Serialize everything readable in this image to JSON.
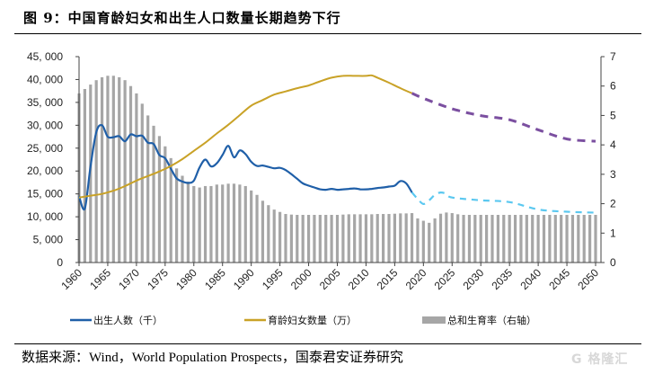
{
  "header": {
    "title": "图 9：中国育龄妇女和出生人口数量长期趋势下行"
  },
  "footer": {
    "source": "数据来源：Wind，World Population Prospects，国泰君安证券研究",
    "watermark": "G 格隆汇"
  },
  "colors": {
    "births": "#1f5fa8",
    "births_forecast": "#5bc8f0",
    "women": "#c9a227",
    "women_forecast": "#7b4fa0",
    "tfr": "#a6a6a6"
  },
  "chart_data": {
    "type": "bar+line",
    "title": "图 9：中国育龄妇女和出生人口数量长期趋势下行",
    "xlabel": "",
    "ylabel_left": "",
    "ylabel_right": "",
    "x_range": [
      1960,
      2050
    ],
    "x_ticks": [
      "1960",
      "1965",
      "1970",
      "1975",
      "1980",
      "1985",
      "1990",
      "1995",
      "2000",
      "2005",
      "2010",
      "2015",
      "2020",
      "2025",
      "2030",
      "2035",
      "2040",
      "2045",
      "2050"
    ],
    "y_left": {
      "range": [
        0,
        45000
      ],
      "ticks": [
        "0",
        "5, 000",
        "10, 000",
        "15, 000",
        "20, 000",
        "25, 000",
        "30, 000",
        "35, 000",
        "40, 000",
        "45, 000"
      ]
    },
    "y_right": {
      "range": [
        0,
        7
      ],
      "ticks": [
        "0",
        "1",
        "2",
        "3",
        "4",
        "5",
        "6",
        "7"
      ]
    },
    "grid": false,
    "legend": {
      "placement": "bottom",
      "entries": [
        {
          "label": "出生人数（千）",
          "style": "line",
          "color_key": "births"
        },
        {
          "label": "育龄妇女数量（万）",
          "style": "line",
          "color_key": "women"
        },
        {
          "label": "总和生育率（右轴）",
          "style": "bar",
          "color_key": "tfr"
        }
      ]
    },
    "series": [
      {
        "name": "总和生育率（右轴）",
        "type": "bar",
        "axis": "right",
        "x": [
          1960,
          1961,
          1962,
          1963,
          1964,
          1965,
          1966,
          1967,
          1968,
          1969,
          1970,
          1971,
          1972,
          1973,
          1974,
          1975,
          1976,
          1977,
          1978,
          1979,
          1980,
          1981,
          1982,
          1983,
          1984,
          1985,
          1986,
          1987,
          1988,
          1989,
          1990,
          1991,
          1992,
          1993,
          1994,
          1995,
          1996,
          1997,
          1998,
          1999,
          2000,
          2001,
          2002,
          2003,
          2004,
          2005,
          2006,
          2007,
          2008,
          2009,
          2010,
          2011,
          2012,
          2013,
          2014,
          2015,
          2016,
          2017,
          2018,
          2019,
          2020,
          2021,
          2022,
          2023,
          2024,
          2025,
          2026,
          2027,
          2028,
          2029,
          2030,
          2031,
          2032,
          2033,
          2034,
          2035,
          2036,
          2037,
          2038,
          2039,
          2040,
          2041,
          2042,
          2043,
          2044,
          2045,
          2046,
          2047,
          2048,
          2049,
          2050
        ],
        "values": [
          5.75,
          5.9,
          6.05,
          6.2,
          6.3,
          6.35,
          6.35,
          6.3,
          6.2,
          6.0,
          5.75,
          5.4,
          5.0,
          4.65,
          4.3,
          3.95,
          3.55,
          3.2,
          2.95,
          2.75,
          2.6,
          2.55,
          2.6,
          2.6,
          2.65,
          2.65,
          2.68,
          2.68,
          2.65,
          2.6,
          2.45,
          2.3,
          2.1,
          1.95,
          1.8,
          1.72,
          1.65,
          1.63,
          1.62,
          1.62,
          1.62,
          1.62,
          1.62,
          1.62,
          1.62,
          1.62,
          1.63,
          1.64,
          1.64,
          1.64,
          1.64,
          1.64,
          1.65,
          1.65,
          1.65,
          1.66,
          1.67,
          1.67,
          1.68,
          1.5,
          1.42,
          1.35,
          1.5,
          1.66,
          1.7,
          1.68,
          1.64,
          1.62,
          1.62,
          1.62,
          1.62,
          1.62,
          1.62,
          1.62,
          1.62,
          1.62,
          1.62,
          1.62,
          1.62,
          1.62,
          1.62,
          1.62,
          1.62,
          1.62,
          1.62,
          1.62,
          1.62,
          1.62,
          1.62,
          1.62,
          1.62
        ]
      },
      {
        "name": "出生人数（千）",
        "type": "line",
        "axis": "left",
        "x": [
          1960,
          1961,
          1962,
          1963,
          1964,
          1965,
          1966,
          1967,
          1968,
          1969,
          1970,
          1971,
          1972,
          1973,
          1974,
          1975,
          1976,
          1977,
          1978,
          1979,
          1980,
          1981,
          1982,
          1983,
          1984,
          1985,
          1986,
          1987,
          1988,
          1989,
          1990,
          1991,
          1992,
          1993,
          1994,
          1995,
          1996,
          1997,
          1998,
          1999,
          2000,
          2001,
          2002,
          2003,
          2004,
          2005,
          2006,
          2007,
          2008,
          2009,
          2010,
          2011,
          2012,
          2013,
          2014,
          2015,
          2016,
          2017,
          2018
        ],
        "values": [
          14500,
          11800,
          21000,
          28500,
          30000,
          27500,
          27400,
          27600,
          26500,
          28000,
          27600,
          27700,
          26200,
          25900,
          23500,
          22800,
          20500,
          18400,
          17700,
          17400,
          17900,
          20800,
          22500,
          21000,
          21700,
          23500,
          25500,
          23000,
          24500,
          23700,
          22000,
          21100,
          21200,
          20900,
          20600,
          20700,
          20200,
          19300,
          18300,
          17300,
          16800,
          16400,
          16000,
          15900,
          16100,
          15900,
          16000,
          16100,
          16200,
          16000,
          16000,
          16100,
          16300,
          16400,
          16600,
          16800,
          17800,
          17300,
          15300
        ]
      },
      {
        "name": "出生人数（千） 预测",
        "type": "line-dashed",
        "axis": "left",
        "x": [
          2018,
          2019,
          2020,
          2021,
          2022,
          2023,
          2024,
          2025,
          2030,
          2035,
          2040,
          2045,
          2050
        ],
        "values": [
          15300,
          13900,
          12800,
          13600,
          14800,
          15300,
          15000,
          14200,
          13600,
          13200,
          11600,
          11100,
          10900
        ]
      },
      {
        "name": "育龄妇女数量（万）",
        "type": "line",
        "axis": "left",
        "x": [
          1960,
          1962,
          1964,
          1966,
          1968,
          1970,
          1972,
          1974,
          1976,
          1978,
          1980,
          1982,
          1984,
          1986,
          1988,
          1990,
          1992,
          1994,
          1996,
          1998,
          2000,
          2002,
          2004,
          2006,
          2008,
          2010,
          2011,
          2012,
          2014,
          2016,
          2018
        ],
        "values": [
          14200,
          14600,
          15000,
          15700,
          16700,
          17900,
          18900,
          19900,
          21100,
          22600,
          24400,
          26200,
          28200,
          30100,
          32200,
          34300,
          35500,
          36700,
          37400,
          38100,
          38700,
          39600,
          40400,
          40800,
          40800,
          40800,
          40900,
          40400,
          39300,
          38100,
          37000
        ]
      },
      {
        "name": "育龄妇女数量（万） 预测",
        "type": "line-dashed",
        "axis": "left",
        "x": [
          2018,
          2020,
          2025,
          2030,
          2035,
          2040,
          2045,
          2050
        ],
        "values": [
          37000,
          35900,
          33600,
          32100,
          31200,
          29000,
          27000,
          26500
        ]
      }
    ]
  }
}
